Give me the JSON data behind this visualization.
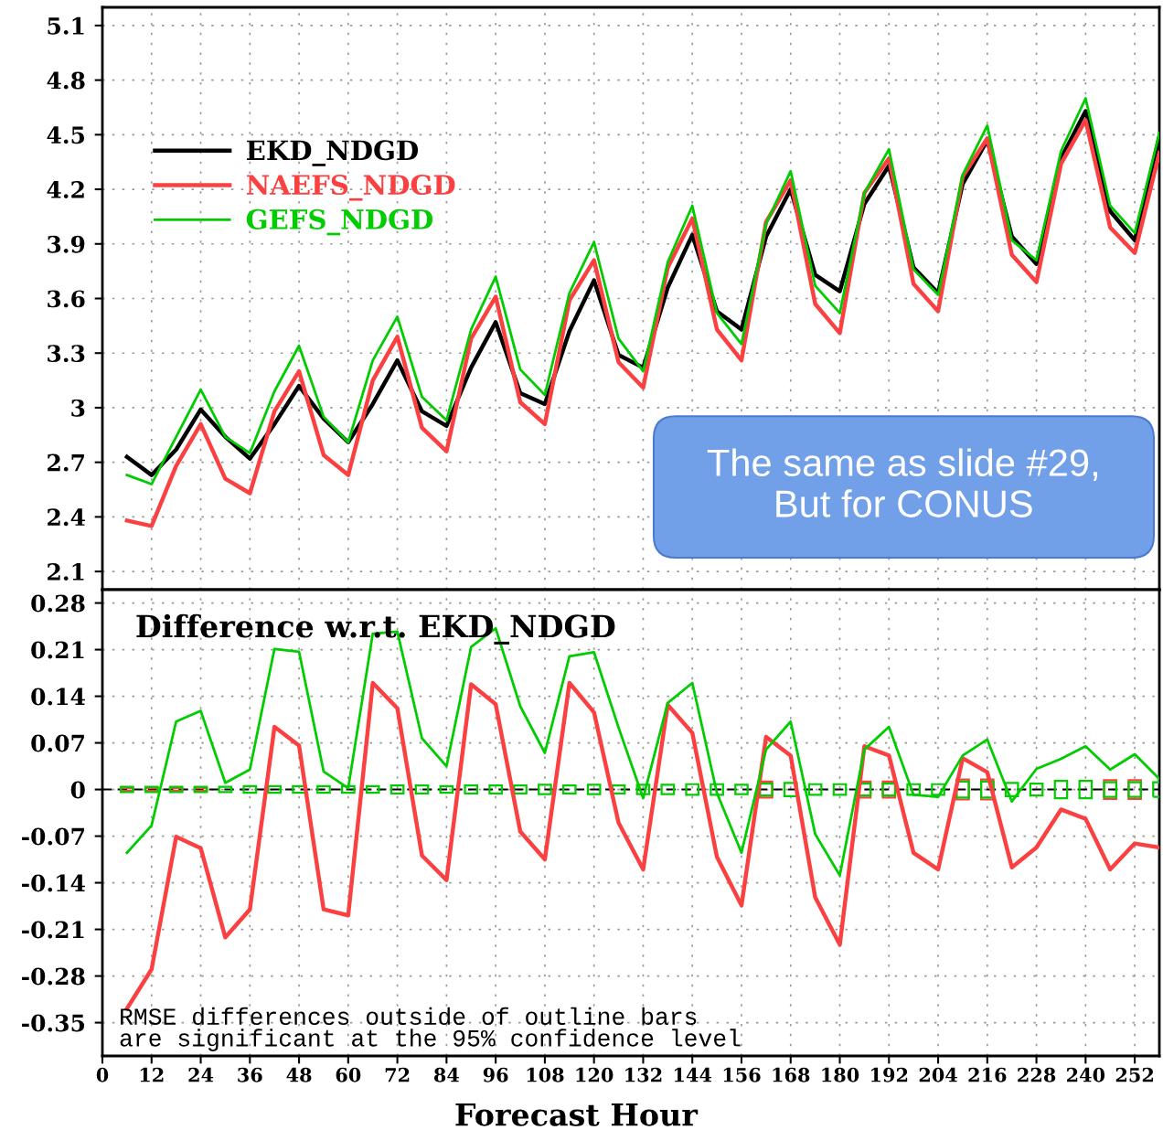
{
  "chart_data": [
    {
      "type": "line",
      "x": [
        6,
        12,
        18,
        24,
        30,
        36,
        42,
        48,
        54,
        60,
        66,
        72,
        78,
        84,
        90,
        96,
        102,
        108,
        114,
        120,
        126,
        132,
        138,
        144,
        150,
        156,
        162,
        168,
        174,
        180,
        186,
        192,
        198,
        204,
        210,
        216,
        222,
        228,
        234,
        240,
        246,
        252,
        258
      ],
      "series": [
        {
          "name": "EKD_NDGD",
          "color": "#000000",
          "values": [
            2.73,
            2.63,
            2.77,
            2.99,
            2.84,
            2.72,
            2.91,
            3.12,
            2.94,
            2.81,
            3.02,
            3.26,
            2.98,
            2.9,
            3.22,
            3.47,
            3.08,
            3.02,
            3.42,
            3.7,
            3.29,
            3.22,
            3.66,
            3.95,
            3.53,
            3.43,
            3.94,
            4.2,
            3.73,
            3.64,
            4.12,
            4.33,
            3.77,
            3.63,
            4.23,
            4.47,
            3.94,
            3.79,
            4.37,
            4.63,
            4.08,
            3.92,
            4.49
          ]
        },
        {
          "name": "NAEFS_NDGD",
          "color": "#fa4040",
          "values": [
            2.38,
            2.35,
            2.68,
            2.91,
            2.61,
            2.53,
            2.98,
            3.2,
            2.74,
            2.63,
            3.15,
            3.39,
            2.89,
            2.76,
            3.38,
            3.61,
            3.03,
            2.91,
            3.59,
            3.81,
            3.25,
            3.11,
            3.77,
            4.04,
            3.43,
            3.26,
            4.02,
            4.25,
            3.57,
            3.41,
            4.18,
            4.37,
            3.68,
            3.53,
            4.27,
            4.48,
            3.84,
            3.69,
            4.34,
            4.58,
            3.99,
            3.85,
            4.4
          ]
        },
        {
          "name": "GEFS_NDGD",
          "color": "#00cc00",
          "values": [
            2.63,
            2.58,
            2.84,
            3.1,
            2.84,
            2.75,
            3.09,
            3.34,
            2.95,
            2.81,
            3.26,
            3.5,
            3.06,
            2.93,
            3.43,
            3.72,
            3.21,
            3.07,
            3.63,
            3.91,
            3.38,
            3.2,
            3.8,
            4.11,
            3.52,
            3.35,
            4.01,
            4.3,
            3.67,
            3.52,
            4.18,
            4.42,
            3.76,
            3.62,
            4.28,
            4.55,
            3.92,
            3.81,
            4.41,
            4.7,
            4.11,
            3.96,
            4.51
          ]
        }
      ],
      "xlim": [
        0,
        258
      ],
      "xticks": [
        0,
        12,
        24,
        36,
        48,
        60,
        72,
        84,
        96,
        108,
        120,
        132,
        144,
        156,
        168,
        180,
        192,
        204,
        216,
        228,
        240,
        252
      ],
      "ylim": [
        2.0,
        5.2
      ],
      "yticks": [
        2.1,
        2.4,
        2.7,
        3,
        3.3,
        3.6,
        3.9,
        4.2,
        4.5,
        4.8,
        5.1
      ],
      "grid": true,
      "legend": "top left",
      "tick_labels": "y",
      "annotations": [
        "The same as slide #29,\nBut for CONUS"
      ]
    },
    {
      "type": "line",
      "title": "Difference w.r.t. EKD_NDGD",
      "xlabel": "Forecast Hour",
      "x": [
        6,
        12,
        18,
        24,
        30,
        36,
        42,
        48,
        54,
        60,
        66,
        72,
        78,
        84,
        90,
        96,
        102,
        108,
        114,
        120,
        126,
        132,
        138,
        144,
        150,
        156,
        162,
        168,
        174,
        180,
        186,
        192,
        198,
        204,
        210,
        216,
        222,
        228,
        234,
        240,
        246,
        252,
        258
      ],
      "series": [
        {
          "type": "bar",
          "color": "#fa4040",
          "base": [
            -0.002,
            -0.002,
            -0.002,
            -0.002,
            null,
            null,
            null,
            null,
            null,
            null,
            null,
            null,
            null,
            null,
            null,
            null,
            null,
            null,
            null,
            null,
            null,
            null,
            null,
            null,
            null,
            null,
            -0.012,
            null,
            null,
            null,
            -0.012,
            -0.012,
            null,
            null,
            -0.015,
            -0.015,
            null,
            null,
            null,
            null,
            -0.014,
            -0.014,
            null
          ],
          "values": [
            0.004,
            0.004,
            0.004,
            0.004,
            null,
            null,
            null,
            null,
            null,
            null,
            null,
            null,
            null,
            null,
            null,
            null,
            null,
            null,
            null,
            null,
            null,
            null,
            null,
            null,
            null,
            null,
            0.024,
            null,
            null,
            null,
            0.024,
            0.024,
            null,
            null,
            0.03,
            0.03,
            null,
            null,
            null,
            null,
            0.028,
            0.028,
            null
          ]
        },
        {
          "type": "bar",
          "color": "#00cc00",
          "base": [
            -0.004,
            -0.004,
            -0.004,
            -0.004,
            -0.004,
            -0.005,
            -0.005,
            -0.005,
            -0.005,
            -0.005,
            -0.005,
            -0.006,
            -0.006,
            -0.005,
            -0.006,
            -0.006,
            -0.006,
            -0.007,
            -0.006,
            -0.007,
            -0.006,
            -0.007,
            -0.007,
            -0.008,
            -0.008,
            -0.007,
            -0.009,
            -0.01,
            -0.008,
            -0.008,
            -0.009,
            -0.009,
            -0.008,
            -0.008,
            -0.012,
            -0.012,
            -0.01,
            -0.009,
            -0.013,
            -0.013,
            -0.011,
            -0.011,
            -0.011
          ],
          "values": [
            0.008,
            0.008,
            0.008,
            0.008,
            0.008,
            0.01,
            0.01,
            0.01,
            0.01,
            0.01,
            0.01,
            0.012,
            0.012,
            0.01,
            0.012,
            0.012,
            0.012,
            0.014,
            0.012,
            0.014,
            0.012,
            0.014,
            0.014,
            0.016,
            0.016,
            0.014,
            0.018,
            0.02,
            0.016,
            0.016,
            0.018,
            0.018,
            0.016,
            0.016,
            0.024,
            0.024,
            0.02,
            0.018,
            0.026,
            0.026,
            0.022,
            0.022,
            0.022
          ]
        },
        {
          "color": "#fa4040",
          "values": [
            -0.329,
            -0.27,
            -0.071,
            -0.088,
            -0.222,
            -0.18,
            0.094,
            0.066,
            -0.18,
            -0.189,
            0.16,
            0.122,
            -0.099,
            -0.136,
            0.158,
            0.128,
            -0.063,
            -0.105,
            0.16,
            0.116,
            -0.05,
            -0.12,
            0.127,
            0.085,
            -0.101,
            -0.174,
            0.079,
            0.051,
            -0.162,
            -0.233,
            0.065,
            0.051,
            -0.095,
            -0.12,
            0.047,
            0.026,
            -0.117,
            -0.087,
            -0.03,
            -0.044,
            -0.12,
            -0.081,
            -0.087
          ]
        },
        {
          "color": "#00cc00",
          "values": [
            -0.095,
            -0.054,
            0.102,
            0.118,
            0.01,
            0.03,
            0.211,
            0.207,
            0.027,
            0.002,
            0.234,
            0.237,
            0.077,
            0.035,
            0.214,
            0.242,
            0.125,
            0.055,
            0.2,
            0.206,
            0.093,
            -0.013,
            0.13,
            0.16,
            -0.005,
            -0.095,
            0.06,
            0.102,
            -0.067,
            -0.129,
            0.06,
            0.094,
            -0.008,
            -0.011,
            0.051,
            0.075,
            -0.018,
            0.031,
            0.046,
            0.065,
            0.03,
            0.053,
            0.016
          ]
        }
      ],
      "ref_lines": [
        {
          "axis": "y",
          "value": 0,
          "color": "#000000",
          "line_style": "dashed"
        }
      ],
      "xlim": [
        0,
        258
      ],
      "xticks": [
        0,
        12,
        24,
        36,
        48,
        60,
        72,
        84,
        96,
        108,
        120,
        132,
        144,
        156,
        168,
        180,
        192,
        204,
        216,
        228,
        240,
        252
      ],
      "ylim": [
        -0.4,
        0.3
      ],
      "yticks": [
        -0.35,
        -0.28,
        -0.21,
        -0.14,
        -0.07,
        0,
        0.07,
        0.14,
        0.21,
        0.28
      ],
      "grid": true,
      "annotations": [
        "RMSE differences outside of outline bars\nare significant at the 95% confidence level"
      ]
    }
  ]
}
